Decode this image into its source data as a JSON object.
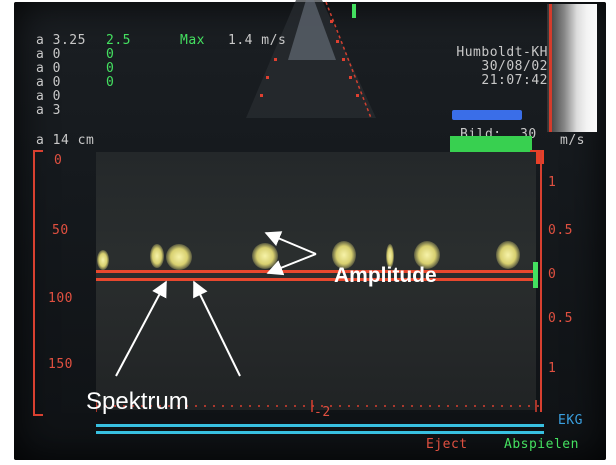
{
  "top_left": {
    "lines_gray": [
      "a 3.25",
      "a 0",
      "a 0",
      "a 0",
      "a 0",
      "a 3"
    ],
    "green_small": [
      "2.5",
      "0",
      "0",
      "0"
    ],
    "max_label": "Max",
    "max_value": "1.4 m/s"
  },
  "depth": "a 14 cm",
  "top_right": {
    "line1": "Humboldt-KH",
    "line2": "30/08/02",
    "line3": "21:07:42",
    "bild_label": "Bild:",
    "bild_value": "30",
    "unit": "m/s"
  },
  "left_scale": [
    "0",
    "50",
    "100",
    "150"
  ],
  "right_scale": [
    "1",
    "0.5",
    "0",
    "0.5",
    "1"
  ],
  "bottom_scale_label": "-2",
  "footer": {
    "eject": "Eject",
    "abspielen": "Abspielen",
    "ekg": "EKG"
  },
  "annotations": {
    "amplitude": "Amplitude",
    "spektrum": "Spektrum"
  },
  "colors": {
    "baseline": "#e8482e",
    "scale": "#d84030",
    "footer_line": "#38c0e0",
    "text_green": "#44e060"
  }
}
